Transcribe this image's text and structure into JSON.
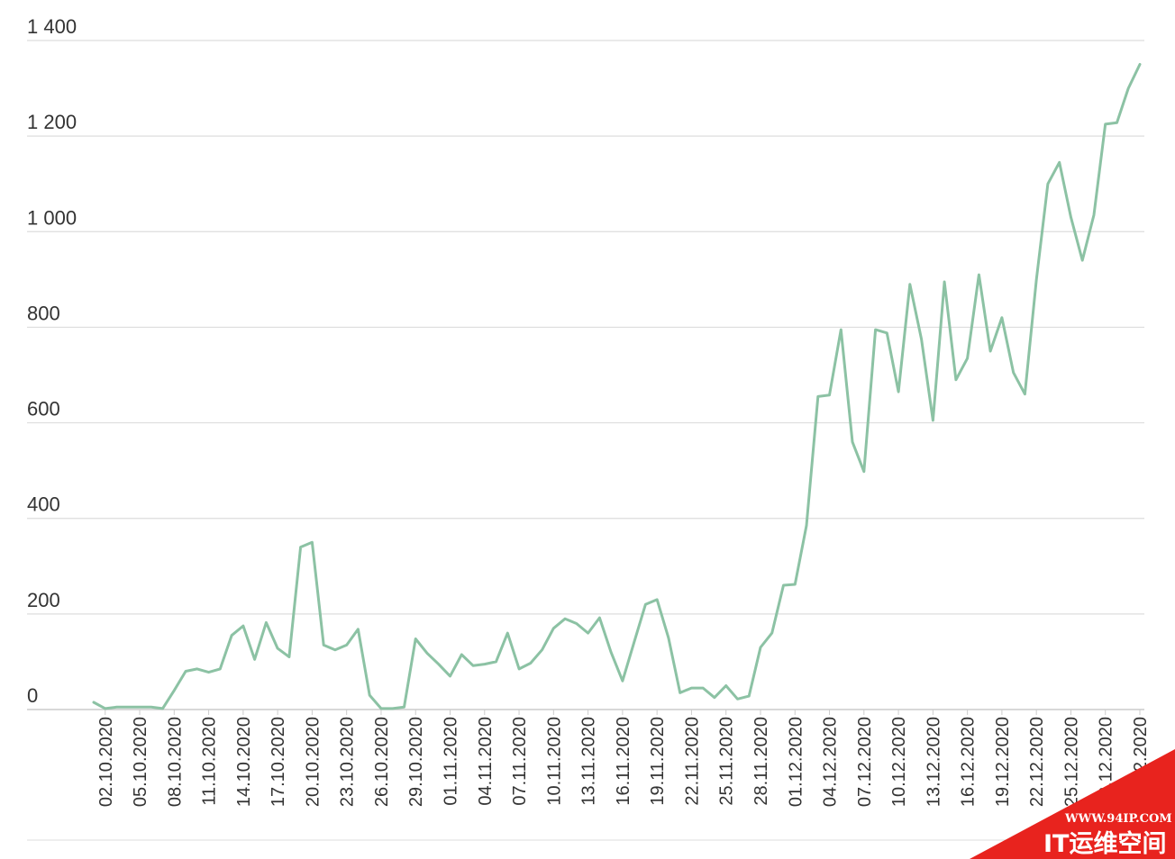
{
  "chart_data": {
    "type": "line",
    "title": "",
    "xlabel": "",
    "ylabel": "",
    "ylim": [
      0,
      1400
    ],
    "yticks": [
      0,
      200,
      400,
      600,
      800,
      1000,
      1200,
      1400
    ],
    "ytick_labels": [
      "0",
      "200",
      "400",
      "600",
      "800",
      "1 000",
      "1 200",
      "1 400"
    ],
    "grid": true,
    "line_color": "#8cc2a4",
    "grid_color": "#dddddd",
    "x": [
      "01.10.2020",
      "02.10.2020",
      "03.10.2020",
      "04.10.2020",
      "05.10.2020",
      "06.10.2020",
      "07.10.2020",
      "08.10.2020",
      "09.10.2020",
      "10.10.2020",
      "11.10.2020",
      "12.10.2020",
      "13.10.2020",
      "14.10.2020",
      "15.10.2020",
      "16.10.2020",
      "17.10.2020",
      "18.10.2020",
      "19.10.2020",
      "20.10.2020",
      "21.10.2020",
      "22.10.2020",
      "23.10.2020",
      "24.10.2020",
      "25.10.2020",
      "26.10.2020",
      "27.10.2020",
      "28.10.2020",
      "29.10.2020",
      "30.10.2020",
      "31.10.2020",
      "01.11.2020",
      "02.11.2020",
      "03.11.2020",
      "04.11.2020",
      "05.11.2020",
      "06.11.2020",
      "07.11.2020",
      "08.11.2020",
      "09.11.2020",
      "10.11.2020",
      "11.11.2020",
      "12.11.2020",
      "13.11.2020",
      "14.11.2020",
      "15.11.2020",
      "16.11.2020",
      "17.11.2020",
      "18.11.2020",
      "19.11.2020",
      "20.11.2020",
      "21.11.2020",
      "22.11.2020",
      "23.11.2020",
      "24.11.2020",
      "25.11.2020",
      "26.11.2020",
      "27.11.2020",
      "28.11.2020",
      "29.11.2020",
      "30.11.2020",
      "01.12.2020",
      "02.12.2020",
      "03.12.2020",
      "04.12.2020",
      "05.12.2020",
      "06.12.2020",
      "07.12.2020",
      "08.12.2020",
      "09.12.2020",
      "10.12.2020",
      "11.12.2020",
      "12.12.2020",
      "13.12.2020",
      "14.12.2020",
      "15.12.2020",
      "16.12.2020",
      "17.12.2020",
      "18.12.2020",
      "19.12.2020",
      "20.12.2020",
      "21.12.2020",
      "22.12.2020",
      "23.12.2020",
      "24.12.2020",
      "25.12.2020",
      "26.12.2020",
      "27.12.2020",
      "28.12.2020",
      "29.12.2020",
      "30.12.2020",
      "31.12.2020"
    ],
    "tick_labels": [
      "02.10.2020",
      "05.10.2020",
      "08.10.2020",
      "11.10.2020",
      "14.10.2020",
      "17.10.2020",
      "20.10.2020",
      "23.10.2020",
      "26.10.2020",
      "29.10.2020",
      "01.11.2020",
      "04.11.2020",
      "07.11.2020",
      "10.11.2020",
      "13.11.2020",
      "16.11.2020",
      "19.11.2020",
      "22.11.2020",
      "25.11.2020",
      "28.11.2020",
      "01.12.2020",
      "04.12.2020",
      "07.12.2020",
      "10.12.2020",
      "13.12.2020",
      "16.12.2020",
      "19.12.2020",
      "22.12.2020",
      "25.12.2020",
      "28.12.2020",
      "31.12.2020"
    ],
    "series": [
      {
        "values": [
          15,
          2,
          5,
          5,
          5,
          5,
          2,
          40,
          80,
          85,
          78,
          85,
          155,
          175,
          105,
          182,
          128,
          110,
          340,
          350,
          135,
          125,
          135,
          168,
          30,
          2,
          2,
          5,
          148,
          118,
          95,
          70,
          115,
          92,
          95,
          100,
          160,
          85,
          97,
          125,
          170,
          190,
          180,
          160,
          192,
          120,
          60,
          140,
          220,
          230,
          150,
          35,
          45,
          45,
          25,
          50,
          22,
          28,
          130,
          160,
          260,
          262,
          385,
          655,
          658,
          795,
          560,
          498,
          795,
          788,
          665,
          890,
          775,
          605,
          895,
          690,
          735,
          910,
          750,
          820,
          705,
          660,
          900,
          1100,
          1145,
          1030,
          940,
          1035,
          1225,
          1228,
          1300,
          1350
        ]
      }
    ]
  },
  "watermark": {
    "url": "WWW.94IP.COM",
    "name": "IT运维空间",
    "color": "#e8231e"
  }
}
